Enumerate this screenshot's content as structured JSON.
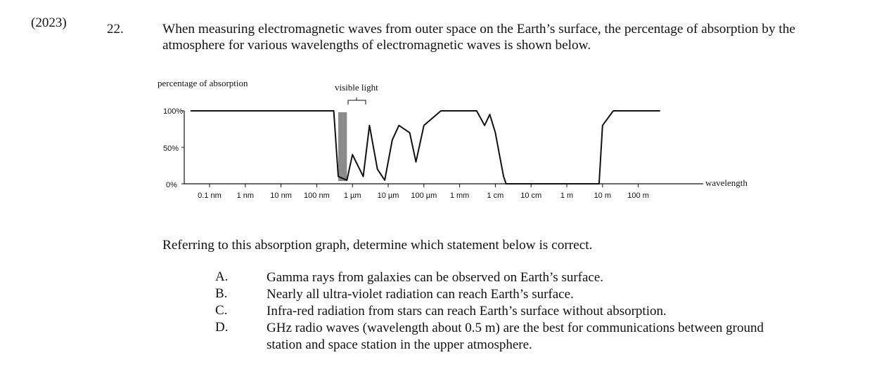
{
  "question": {
    "year": "(2023)",
    "number": "22.",
    "intro": "When measuring electromagnetic waves from outer space on the Earth’s surface, the percentage of absorption by the atmosphere for various wavelengths of electromagnetic waves is shown below.",
    "prompt": "Referring to this absorption graph, determine which statement below is correct."
  },
  "chart_data": {
    "type": "line",
    "ylabel": "percentage of absorption",
    "xlabel": "wavelength",
    "annotation": "visible light",
    "y_ticks": [
      "100%",
      "50%",
      "0%"
    ],
    "x_ticks": [
      "0.1 nm",
      "1 nm",
      "10 nm",
      "100 nm",
      "1 µm",
      "10 µm",
      "100 µm",
      "1 mm",
      "1 cm",
      "10 cm",
      "1 m",
      "10 m",
      "100 m"
    ],
    "x_scale": "log",
    "ylim": [
      0,
      100
    ],
    "series": [
      {
        "x": [
          "0.03 nm",
          "0.1 nm",
          "1 nm",
          "10 nm",
          "100 nm",
          "300 nm",
          "400 nm",
          "700 nm",
          "1 µm",
          "2 µm",
          "3 µm",
          "5 µm",
          "8 µm",
          "13 µm",
          "20 µm",
          "40 µm",
          "60 µm",
          "100 µm",
          "300 µm",
          "1 mm",
          "3 mm",
          "5 mm",
          "7 mm",
          "1 cm",
          "1.3 cm",
          "1.7 cm",
          "2 cm",
          "10 cm",
          "1 m",
          "5 m",
          "8 m",
          "10 m",
          "20 m",
          "100 m",
          "400 m"
        ],
        "values": [
          100,
          100,
          100,
          100,
          100,
          100,
          10,
          5,
          40,
          10,
          80,
          20,
          5,
          60,
          80,
          70,
          30,
          80,
          100,
          100,
          100,
          80,
          95,
          70,
          40,
          10,
          0,
          0,
          0,
          0,
          0,
          80,
          100,
          100,
          100
        ]
      }
    ]
  },
  "choices": [
    {
      "letter": "A.",
      "text": "Gamma rays from galaxies can be observed on Earth’s surface."
    },
    {
      "letter": "B.",
      "text": "Nearly all ultra-violet radiation can reach Earth’s surface."
    },
    {
      "letter": "C.",
      "text": "Infra-red radiation from stars can reach Earth’s surface without absorption."
    },
    {
      "letter": "D.",
      "text": "GHz radio waves (wavelength about 0.5 m) are the best for communications between ground station and space station in the upper atmosphere."
    }
  ]
}
